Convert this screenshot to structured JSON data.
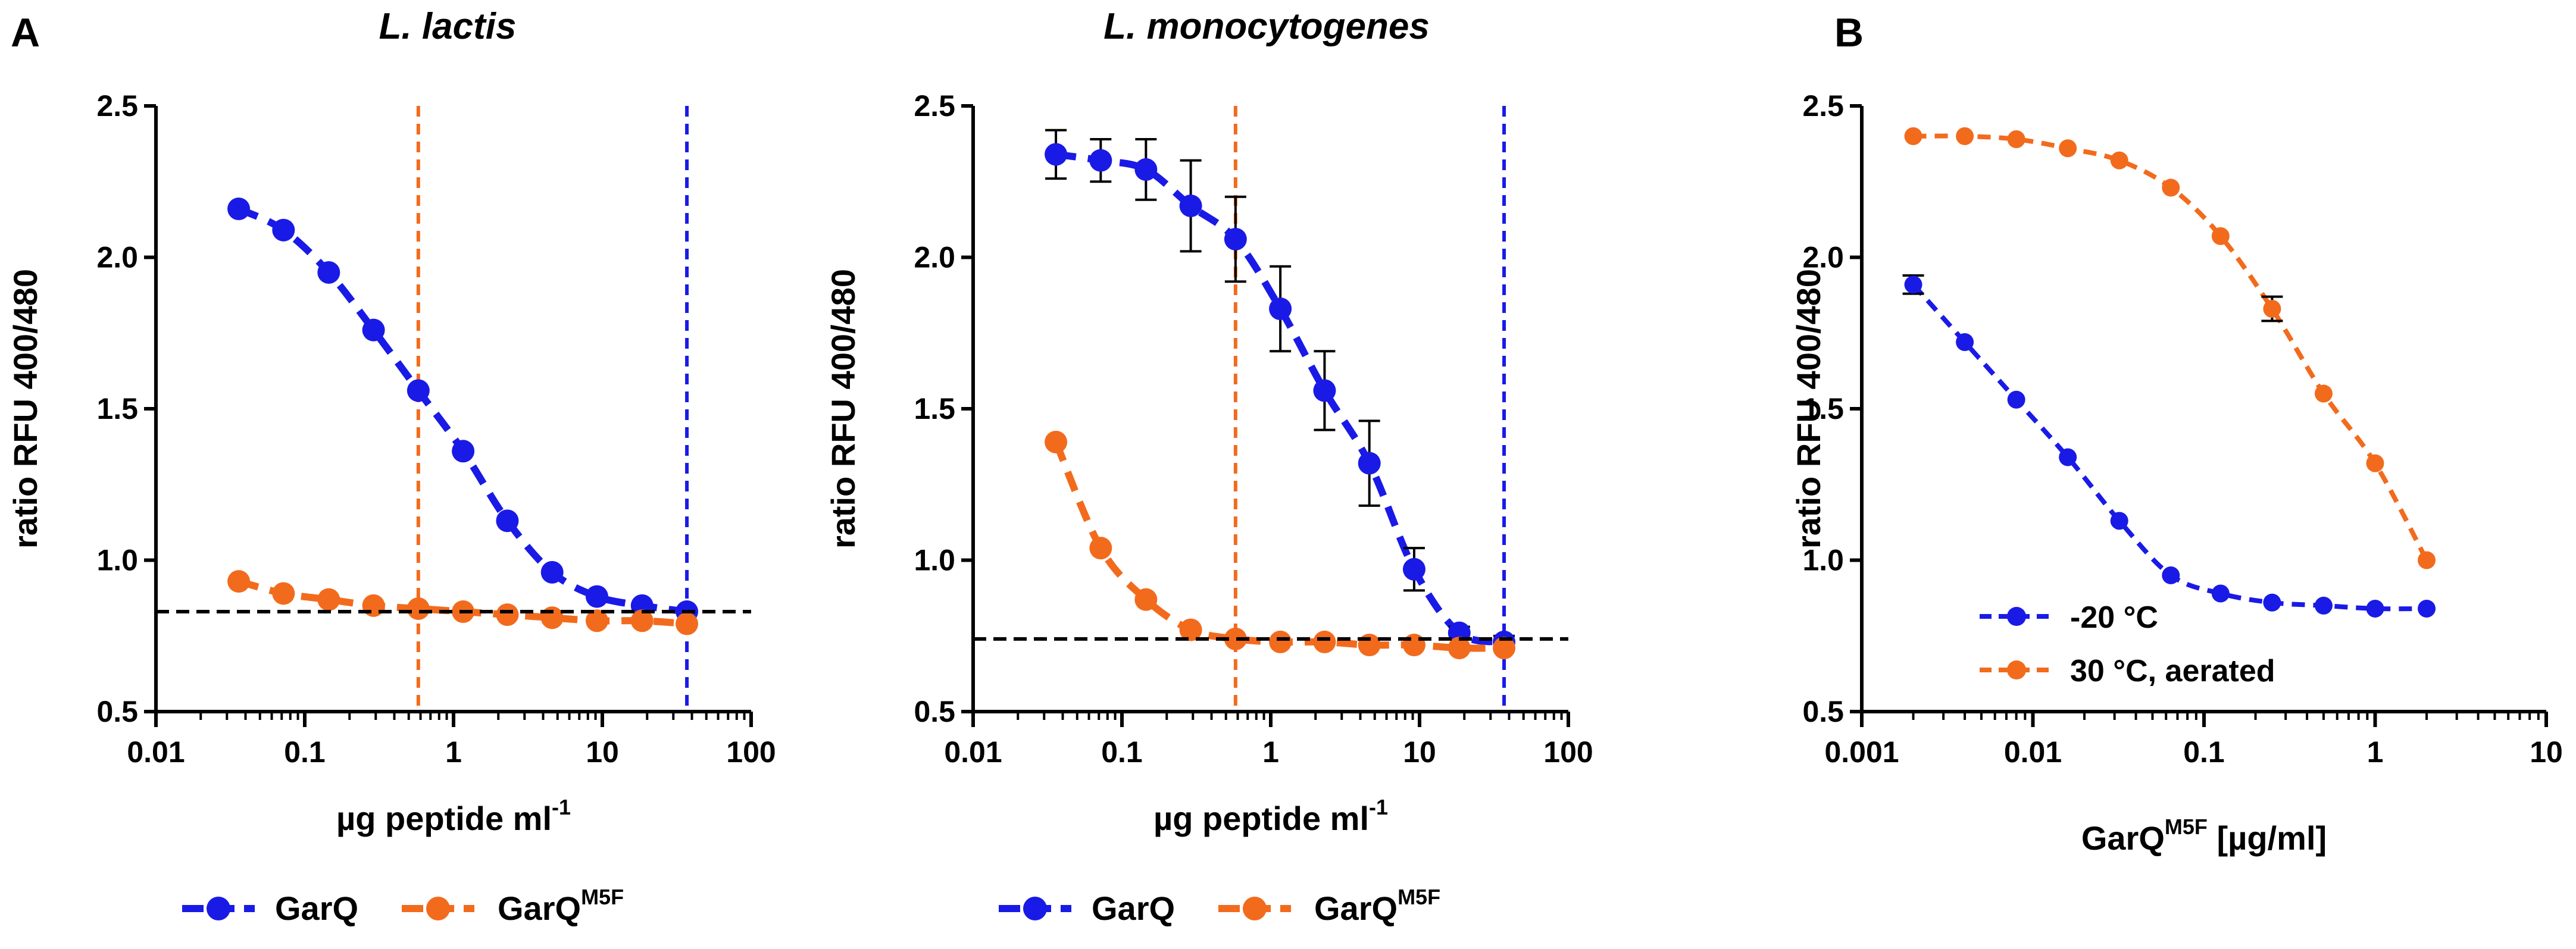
{
  "panel_labels": [
    "A",
    "B"
  ],
  "colors": {
    "blue": "#1a1ae6",
    "orange": "#f26b1d",
    "black": "#000000"
  },
  "chart_data": [
    {
      "type": "scatter",
      "panel": "A",
      "title": "L. lactis",
      "xlabel": "µg peptide ml",
      "xlabel_sup": "-1",
      "ylabel": "ratio RFU 400/480",
      "xscale": "log",
      "xlim": [
        0.01,
        100
      ],
      "ylim": [
        0.5,
        2.5
      ],
      "xticks": [
        0.01,
        0.1,
        1,
        10,
        100
      ],
      "xtick_labels": [
        "0.01",
        "0.1",
        "1",
        "10",
        "100"
      ],
      "yticks": [
        0.5,
        1.0,
        1.5,
        2.0,
        2.5
      ],
      "ytick_labels": [
        "0.5",
        "1.0",
        "1.5",
        "2.0",
        "2.5"
      ],
      "x": [
        0.036,
        0.072,
        0.145,
        0.29,
        0.58,
        1.16,
        2.3,
        4.6,
        9.2,
        18.5,
        37
      ],
      "series": [
        {
          "name": "GarQ",
          "color": "blue",
          "values": [
            2.16,
            2.09,
            1.95,
            1.76,
            1.56,
            1.36,
            1.13,
            0.96,
            0.88,
            0.85,
            0.83
          ],
          "err": [
            0,
            0,
            0,
            0,
            0,
            0,
            0,
            0,
            0,
            0,
            0
          ]
        },
        {
          "name": "GarQ",
          "name_sup": "M5F",
          "color": "orange",
          "values": [
            0.93,
            0.89,
            0.87,
            0.85,
            0.84,
            0.83,
            0.82,
            0.81,
            0.8,
            0.8,
            0.79
          ],
          "err": [
            0,
            0,
            0,
            0,
            0,
            0,
            0,
            0,
            0,
            0,
            0
          ]
        }
      ],
      "vlines": [
        {
          "x": 0.58,
          "color": "orange"
        },
        {
          "x": 37,
          "color": "blue"
        }
      ],
      "hline": {
        "y": 0.83,
        "color": "black"
      },
      "legend": "below"
    },
    {
      "type": "scatter",
      "panel": "A",
      "title": "L. monocytogenes",
      "xlabel": "µg peptide ml",
      "xlabel_sup": "-1",
      "ylabel": "ratio RFU 400/480",
      "xscale": "log",
      "xlim": [
        0.01,
        100
      ],
      "ylim": [
        0.5,
        2.5
      ],
      "xticks": [
        0.01,
        0.1,
        1,
        10,
        100
      ],
      "xtick_labels": [
        "0.01",
        "0.1",
        "1",
        "10",
        "100"
      ],
      "yticks": [
        0.5,
        1.0,
        1.5,
        2.0,
        2.5
      ],
      "ytick_labels": [
        "0.5",
        "1.0",
        "1.5",
        "2.0",
        "2.5"
      ],
      "x": [
        0.036,
        0.072,
        0.145,
        0.29,
        0.58,
        1.16,
        2.3,
        4.6,
        9.2,
        18.5,
        37
      ],
      "series": [
        {
          "name": "GarQ",
          "color": "blue",
          "values": [
            2.34,
            2.32,
            2.29,
            2.17,
            2.06,
            1.83,
            1.56,
            1.32,
            0.97,
            0.76,
            0.73
          ],
          "err": [
            0.08,
            0.07,
            0.1,
            0.15,
            0.14,
            0.14,
            0.13,
            0.14,
            0.07,
            0.02,
            0.02
          ]
        },
        {
          "name": "GarQ",
          "name_sup": "M5F",
          "color": "orange",
          "values": [
            1.39,
            1.04,
            0.87,
            0.77,
            0.74,
            0.73,
            0.73,
            0.72,
            0.72,
            0.71,
            0.71
          ],
          "err": [
            0,
            0,
            0,
            0,
            0,
            0,
            0,
            0,
            0,
            0,
            0
          ]
        }
      ],
      "vlines": [
        {
          "x": 0.58,
          "color": "orange"
        },
        {
          "x": 37,
          "color": "blue"
        }
      ],
      "hline": {
        "y": 0.74,
        "color": "black"
      },
      "legend": "below"
    },
    {
      "type": "scatter",
      "panel": "B",
      "title": "",
      "xlabel": "GarQ",
      "xlabel_sup": "M5F",
      "xlabel_suffix": " [µg/ml]",
      "ylabel": "ratio RFU 400/480",
      "xscale": "log",
      "xlim": [
        0.001,
        10
      ],
      "ylim": [
        0.5,
        2.5
      ],
      "xticks": [
        0.001,
        0.01,
        0.1,
        1,
        10
      ],
      "xtick_labels": [
        "0.001",
        "0.01",
        "0.1",
        "1",
        "10"
      ],
      "yticks": [
        0.5,
        1.0,
        1.5,
        2.0,
        2.5
      ],
      "ytick_labels": [
        "0.5",
        "1.0",
        "1.5",
        "2.0",
        "2.5"
      ],
      "x": [
        0.002,
        0.004,
        0.008,
        0.016,
        0.032,
        0.064,
        0.125,
        0.25,
        0.5,
        1.0,
        2.0
      ],
      "series": [
        {
          "name": "-20 °C",
          "color": "blue",
          "values": [
            1.91,
            1.72,
            1.53,
            1.34,
            1.13,
            0.95,
            0.89,
            0.86,
            0.85,
            0.84,
            0.84
          ],
          "err": [
            0.03,
            0,
            0,
            0,
            0,
            0,
            0,
            0,
            0,
            0,
            0
          ]
        },
        {
          "name": "30 °C, aerated",
          "color": "orange",
          "values": [
            2.4,
            2.4,
            2.39,
            2.36,
            2.32,
            2.23,
            2.07,
            1.83,
            1.55,
            1.32,
            1.0
          ],
          "err": [
            0,
            0,
            0,
            0,
            0,
            0,
            0,
            0.04,
            0,
            0,
            0
          ]
        }
      ],
      "vlines": [],
      "hline": null,
      "legend": "bottom-left"
    }
  ]
}
